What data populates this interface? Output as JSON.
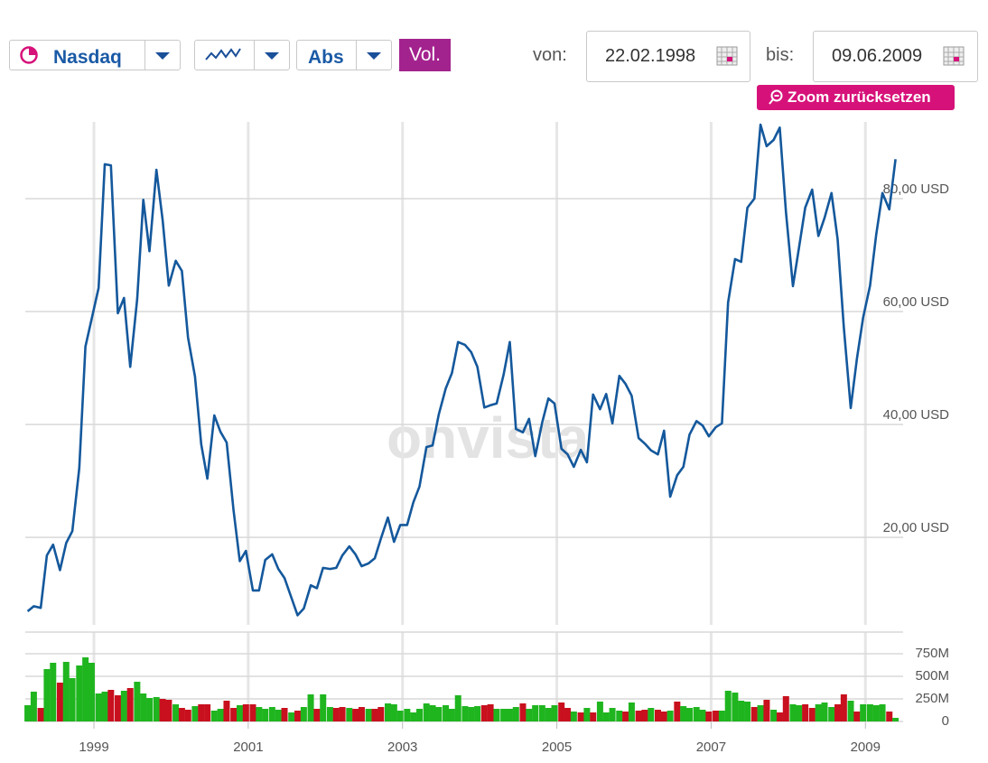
{
  "controls": {
    "index": "Nasdaq",
    "mode": "Abs",
    "volume_button": "Vol.",
    "from_label": "von:",
    "from_date": "22.02.1998",
    "to_label": "bis:",
    "to_date": "09.06.2009",
    "zoom_button": "Zoom zurücksetzen"
  },
  "watermark": "onvista",
  "chart_data": [
    {
      "type": "line",
      "x": [
        1998.14,
        1998.22,
        1998.31,
        1998.39,
        1998.47,
        1998.56,
        1998.64,
        1998.72,
        1998.81,
        1998.89,
        1998.97,
        1999.06,
        1999.14,
        1999.22,
        1999.31,
        1999.39,
        1999.47,
        1999.56,
        1999.64,
        1999.72,
        1999.81,
        1999.89,
        1999.97,
        2000.06,
        2000.14,
        2000.22,
        2000.31,
        2000.39,
        2000.47,
        2000.56,
        2000.64,
        2000.72,
        2000.81,
        2000.89,
        2000.97,
        2001.06,
        2001.14,
        2001.22,
        2001.31,
        2001.39,
        2001.47,
        2001.56,
        2001.64,
        2001.72,
        2001.81,
        2001.89,
        2001.97,
        2002.06,
        2002.14,
        2002.22,
        2002.31,
        2002.39,
        2002.47,
        2002.56,
        2002.64,
        2002.72,
        2002.81,
        2002.89,
        2002.97,
        2003.06,
        2003.14,
        2003.22,
        2003.31,
        2003.39,
        2003.47,
        2003.56,
        2003.64,
        2003.72,
        2003.81,
        2003.89,
        2003.97,
        2004.06,
        2004.14,
        2004.22,
        2004.31,
        2004.39,
        2004.47,
        2004.56,
        2004.64,
        2004.72,
        2004.81,
        2004.89,
        2004.97,
        2005.06,
        2005.14,
        2005.22,
        2005.31,
        2005.39,
        2005.47,
        2005.56,
        2005.64,
        2005.72,
        2005.81,
        2005.89,
        2005.97,
        2006.06,
        2006.14,
        2006.22,
        2006.31,
        2006.39,
        2006.47,
        2006.56,
        2006.64,
        2006.72,
        2006.81,
        2006.89,
        2006.97,
        2007.06,
        2007.14,
        2007.22,
        2007.31,
        2007.39,
        2007.47,
        2007.56,
        2007.64,
        2007.72,
        2007.81,
        2007.89,
        2007.97,
        2008.06,
        2008.14,
        2008.22,
        2008.31,
        2008.39,
        2008.47,
        2008.56,
        2008.64,
        2008.72,
        2008.81,
        2008.89,
        2008.97,
        2009.06,
        2009.14,
        2009.22,
        2009.31,
        2009.39
      ],
      "series": [
        {
          "color": "#14589c",
          "values": [
            6.9,
            7.8,
            7.5,
            16.8,
            18.7,
            14.2,
            19.0,
            21.1,
            32.3,
            53.8,
            58.7,
            64.2,
            86.1,
            85.9,
            59.7,
            62.4,
            50.2,
            62.2,
            79.8,
            70.7,
            85.1,
            76.2,
            64.6,
            69.0,
            67.2,
            55.4,
            48.5,
            36.5,
            30.4,
            41.6,
            38.7,
            36.8,
            24.8,
            15.8,
            17.6,
            10.6,
            10.6,
            16.0,
            17.0,
            14.4,
            12.8,
            9.3,
            6.2,
            7.4,
            11.5,
            11.0,
            14.6,
            14.4,
            14.6,
            16.8,
            18.4,
            17.0,
            14.9,
            15.4,
            16.3,
            19.8,
            23.5,
            19.2,
            22.2,
            22.2,
            26.2,
            29.0,
            36.0,
            36.3,
            41.8,
            46.4,
            49.1,
            54.6,
            54.1,
            52.8,
            50.2,
            43.0,
            43.4,
            43.7,
            48.8,
            54.6,
            39.2,
            38.6,
            41.0,
            34.4,
            40.3,
            44.6,
            43.7,
            35.7,
            34.7,
            32.5,
            35.5,
            33.3,
            45.3,
            42.7,
            45.4,
            40.2,
            48.6,
            47.2,
            45.1,
            37.6,
            36.6,
            35.4,
            34.7,
            38.9,
            27.2,
            31.0,
            32.5,
            38.2,
            40.6,
            39.8,
            37.9,
            39.5,
            40.2,
            61.6,
            69.3,
            68.8,
            78.4,
            80.0,
            93.1,
            89.3,
            90.4,
            92.6,
            77.6,
            64.5,
            71.4,
            78.4,
            81.6,
            73.4,
            76.6,
            81.0,
            72.8,
            57.3,
            42.9,
            51.7,
            58.9,
            64.6,
            73.6,
            81.0,
            78.1,
            87.0
          ]
        }
      ],
      "xlim": [
        1998.11,
        2009.43
      ],
      "xticks": [
        1999,
        2001,
        2003,
        2005,
        2007,
        2009
      ],
      "ylim": [
        4.5,
        93.6
      ],
      "yticks": [
        {
          "value": 20,
          "label": "20,00 USD"
        },
        {
          "value": 40,
          "label": "40,00 USD"
        },
        {
          "value": 60,
          "label": "60,00 USD"
        },
        {
          "value": 80,
          "label": "80,00 USD"
        }
      ],
      "grid": true
    },
    {
      "type": "bar",
      "x": [
        1998.14,
        1998.22,
        1998.31,
        1998.39,
        1998.47,
        1998.56,
        1998.64,
        1998.72,
        1998.81,
        1998.89,
        1998.97,
        1999.06,
        1999.14,
        1999.22,
        1999.31,
        1999.39,
        1999.47,
        1999.56,
        1999.64,
        1999.72,
        1999.81,
        1999.89,
        1999.97,
        2000.06,
        2000.14,
        2000.22,
        2000.31,
        2000.39,
        2000.47,
        2000.56,
        2000.64,
        2000.72,
        2000.81,
        2000.89,
        2000.97,
        2001.06,
        2001.14,
        2001.22,
        2001.31,
        2001.39,
        2001.47,
        2001.56,
        2001.64,
        2001.72,
        2001.81,
        2001.89,
        2001.97,
        2002.06,
        2002.14,
        2002.22,
        2002.31,
        2002.39,
        2002.47,
        2002.56,
        2002.64,
        2002.72,
        2002.81,
        2002.89,
        2002.97,
        2003.06,
        2003.14,
        2003.22,
        2003.31,
        2003.39,
        2003.47,
        2003.56,
        2003.64,
        2003.72,
        2003.81,
        2003.89,
        2003.97,
        2004.06,
        2004.14,
        2004.22,
        2004.31,
        2004.39,
        2004.47,
        2004.56,
        2004.64,
        2004.72,
        2004.81,
        2004.89,
        2004.97,
        2005.06,
        2005.14,
        2005.22,
        2005.31,
        2005.39,
        2005.47,
        2005.56,
        2005.64,
        2005.72,
        2005.81,
        2005.89,
        2005.97,
        2006.06,
        2006.14,
        2006.22,
        2006.31,
        2006.39,
        2006.47,
        2006.56,
        2006.64,
        2006.72,
        2006.81,
        2006.89,
        2006.97,
        2007.06,
        2007.14,
        2007.22,
        2007.31,
        2007.39,
        2007.47,
        2007.56,
        2007.64,
        2007.72,
        2007.81,
        2007.89,
        2007.97,
        2008.06,
        2008.14,
        2008.22,
        2008.31,
        2008.39,
        2008.47,
        2008.56,
        2008.64,
        2008.72,
        2008.81,
        2008.89,
        2008.97,
        2009.06,
        2009.14,
        2009.22,
        2009.31,
        2009.39
      ],
      "values": [
        180,
        330,
        150,
        580,
        650,
        430,
        660,
        480,
        620,
        710,
        650,
        310,
        330,
        350,
        290,
        340,
        370,
        440,
        310,
        260,
        270,
        250,
        240,
        190,
        150,
        130,
        170,
        190,
        190,
        120,
        140,
        230,
        150,
        180,
        190,
        190,
        160,
        140,
        160,
        130,
        150,
        100,
        120,
        160,
        300,
        140,
        300,
        160,
        150,
        160,
        150,
        140,
        160,
        140,
        140,
        160,
        200,
        190,
        120,
        140,
        100,
        140,
        200,
        180,
        160,
        180,
        140,
        290,
        170,
        160,
        170,
        180,
        190,
        140,
        140,
        140,
        160,
        200,
        140,
        180,
        180,
        150,
        180,
        210,
        150,
        110,
        100,
        150,
        100,
        220,
        100,
        150,
        120,
        110,
        210,
        120,
        130,
        150,
        130,
        110,
        120,
        220,
        170,
        150,
        160,
        130,
        110,
        120,
        120,
        340,
        320,
        230,
        220,
        160,
        180,
        240,
        130,
        100,
        280,
        190,
        180,
        190,
        150,
        190,
        210,
        160,
        190,
        300,
        230,
        110,
        190,
        190,
        180,
        190,
        110,
        40
      ],
      "colors": [
        "#1fb51f",
        "#1fb51f",
        "#c8101e",
        "#1fb51f",
        "#1fb51f",
        "#c8101e",
        "#1fb51f",
        "#1fb51f",
        "#1fb51f",
        "#1fb51f",
        "#1fb51f",
        "#1fb51f",
        "#1fb51f",
        "#c8101e",
        "#c8101e",
        "#1fb51f",
        "#c8101e",
        "#1fb51f",
        "#1fb51f",
        "#1fb51f",
        "#1fb51f",
        "#c8101e",
        "#c8101e",
        "#1fb51f",
        "#c8101e",
        "#c8101e",
        "#1fb51f",
        "#c8101e",
        "#c8101e",
        "#1fb51f",
        "#1fb51f",
        "#c8101e",
        "#c8101e",
        "#1fb51f",
        "#c8101e",
        "#c8101e",
        "#1fb51f",
        "#1fb51f",
        "#1fb51f",
        "#1fb51f",
        "#c8101e",
        "#1fb51f",
        "#c8101e",
        "#1fb51f",
        "#1fb51f",
        "#c8101e",
        "#1fb51f",
        "#1fb51f",
        "#c8101e",
        "#c8101e",
        "#1fb51f",
        "#c8101e",
        "#c8101e",
        "#1fb51f",
        "#c8101e",
        "#c8101e",
        "#1fb51f",
        "#1fb51f",
        "#1fb51f",
        "#1fb51f",
        "#1fb51f",
        "#1fb51f",
        "#1fb51f",
        "#1fb51f",
        "#1fb51f",
        "#1fb51f",
        "#1fb51f",
        "#1fb51f",
        "#1fb51f",
        "#1fb51f",
        "#1fb51f",
        "#c8101e",
        "#c8101e",
        "#1fb51f",
        "#1fb51f",
        "#1fb51f",
        "#1fb51f",
        "#c8101e",
        "#1fb51f",
        "#1fb51f",
        "#1fb51f",
        "#1fb51f",
        "#1fb51f",
        "#c8101e",
        "#c8101e",
        "#1fb51f",
        "#c8101e",
        "#1fb51f",
        "#c8101e",
        "#1fb51f",
        "#1fb51f",
        "#1fb51f",
        "#1fb51f",
        "#c8101e",
        "#1fb51f",
        "#c8101e",
        "#c8101e",
        "#1fb51f",
        "#c8101e",
        "#c8101e",
        "#1fb51f",
        "#c8101e",
        "#1fb51f",
        "#1fb51f",
        "#1fb51f",
        "#1fb51f",
        "#c8101e",
        "#c8101e",
        "#1fb51f",
        "#1fb51f",
        "#1fb51f",
        "#1fb51f",
        "#1fb51f",
        "#c8101e",
        "#1fb51f",
        "#c8101e",
        "#1fb51f",
        "#c8101e",
        "#c8101e",
        "#1fb51f",
        "#1fb51f",
        "#c8101e",
        "#c8101e",
        "#1fb51f",
        "#1fb51f",
        "#1fb51f",
        "#c8101e",
        "#c8101e",
        "#1fb51f",
        "#c8101e",
        "#1fb51f",
        "#1fb51f",
        "#1fb51f",
        "#1fb51f",
        "#c8101e",
        "#1fb51f"
      ],
      "xlim": [
        1998.11,
        2009.43
      ],
      "xticks": [
        1999,
        2001,
        2003,
        2005,
        2007,
        2009
      ],
      "ylim": [
        0,
        990
      ],
      "yticks": [
        0,
        {
          "value": 250,
          "label": "250M"
        },
        {
          "value": 500,
          "label": "500M"
        },
        {
          "value": 750,
          "label": "750M"
        }
      ],
      "grid": true
    }
  ]
}
